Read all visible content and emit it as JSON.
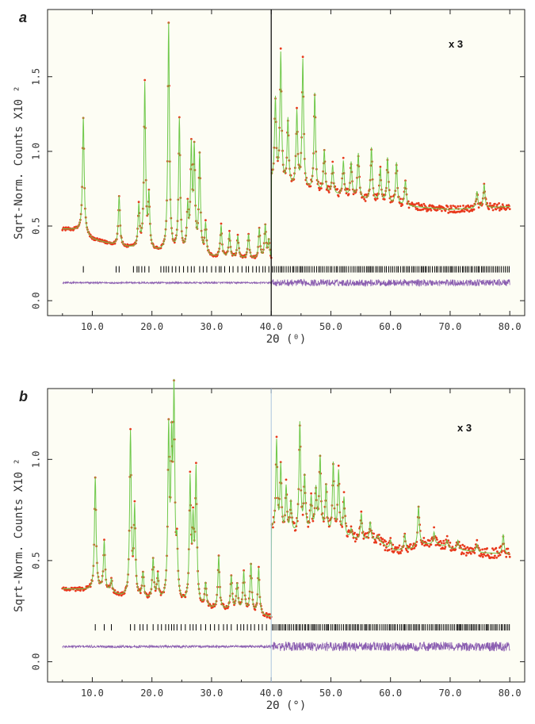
{
  "colors": {
    "observed": "#e8391c",
    "calculated": "#6fc84a",
    "difference": "#8a5db0",
    "reflection_ticks": "#000000",
    "divider_a": "#000000",
    "divider_b": "#a9c4de",
    "panel_bg": "#fdfdf4"
  },
  "chart_data": [
    {
      "panel": "a",
      "type": "line",
      "scale_note": "x 3",
      "scale_break_x": 40.0,
      "xlabel": "2Θ (⁰)",
      "ylabel": "Sqrt-Norm. Counts X10 ²",
      "xlim": [
        2.5,
        82.5
      ],
      "ylim": [
        -0.1,
        1.95
      ],
      "x_ticks": [
        10.0,
        20.0,
        30.0,
        40.0,
        50.0,
        60.0,
        70.0,
        80.0
      ],
      "x_tick_labels": [
        "10.0",
        "20.0",
        "30.0",
        "40.0",
        "50.0",
        "60.0",
        "70.0",
        "80.0"
      ],
      "y_ticks": [
        0.0,
        0.5,
        1.0,
        1.5
      ],
      "y_tick_labels": [
        "0.0",
        "0.5",
        "1.0",
        "1.5"
      ],
      "reflection_tick_y": 0.21,
      "difference_baseline": 0.12,
      "x_range": [
        5.0,
        80.0
      ],
      "background": [
        [
          5,
          0.48
        ],
        [
          8,
          0.47
        ],
        [
          10,
          0.41
        ],
        [
          15,
          0.36
        ],
        [
          20,
          0.33
        ],
        [
          25,
          0.31
        ],
        [
          30,
          0.29
        ],
        [
          35,
          0.28
        ],
        [
          40,
          0.27
        ],
        [
          40.01,
          0.8
        ],
        [
          42,
          0.76
        ],
        [
          45,
          0.74
        ],
        [
          50,
          0.71
        ],
        [
          55,
          0.68
        ],
        [
          60,
          0.64
        ],
        [
          70,
          0.61
        ],
        [
          75,
          0.62
        ],
        [
          80,
          0.63
        ]
      ],
      "peaks": [
        [
          8.5,
          1.23
        ],
        [
          14.5,
          0.7
        ],
        [
          17.8,
          0.62
        ],
        [
          18.8,
          1.44
        ],
        [
          19.5,
          0.68
        ],
        [
          22.8,
          1.85
        ],
        [
          24.6,
          1.2
        ],
        [
          26.6,
          0.98
        ],
        [
          27.1,
          0.97
        ],
        [
          28.0,
          0.96
        ],
        [
          26.0,
          0.6
        ],
        [
          29.0,
          0.5
        ],
        [
          31.6,
          0.5
        ],
        [
          33.0,
          0.45
        ],
        [
          34.4,
          0.43
        ],
        [
          36.2,
          0.44
        ],
        [
          38.0,
          0.48
        ],
        [
          39.0,
          0.5
        ],
        [
          39.6,
          0.4
        ],
        [
          40.7,
          1.34
        ],
        [
          41.6,
          1.64
        ],
        [
          42.8,
          1.2
        ],
        [
          44.3,
          1.25
        ],
        [
          45.3,
          1.6
        ],
        [
          47.3,
          1.38
        ],
        [
          48.9,
          1.0
        ],
        [
          50.3,
          0.9
        ],
        [
          52.1,
          0.93
        ],
        [
          53.4,
          0.92
        ],
        [
          54.6,
          0.98
        ],
        [
          56.8,
          1.02
        ],
        [
          58.3,
          0.88
        ],
        [
          59.5,
          0.95
        ],
        [
          61.0,
          0.92
        ],
        [
          62.5,
          0.8
        ],
        [
          74.5,
          0.73
        ],
        [
          75.7,
          0.78
        ]
      ],
      "reflection_positions": [
        8.5,
        14.0,
        14.5,
        16.9,
        17.5,
        17.8,
        18.3,
        18.8,
        19.5,
        21.5,
        22.0,
        22.4,
        22.8,
        23.4,
        24.0,
        24.6,
        25.3,
        26.0,
        26.6,
        27.1,
        28.0,
        28.6,
        29.2,
        30.0,
        30.7,
        31.3,
        31.6,
        32.2,
        33.0,
        33.6,
        34.4,
        35.1,
        35.8,
        36.2,
        36.9,
        37.5,
        38.0,
        38.6,
        39.0,
        39.6
      ]
    },
    {
      "panel": "b",
      "type": "line",
      "scale_note": "x 3",
      "scale_break_x": 40.0,
      "xlabel": "2Θ (°)",
      "ylabel": "Sqrt-Norm. Counts X10 ²",
      "xlim": [
        2.5,
        82.5
      ],
      "ylim": [
        -0.1,
        1.35
      ],
      "x_ticks": [
        10.0,
        20.0,
        30.0,
        40.0,
        50.0,
        60.0,
        70.0,
        80.0
      ],
      "x_tick_labels": [
        "10.0",
        "20.0",
        "30.0",
        "40.0",
        "50.0",
        "60.0",
        "70.0",
        "80.0"
      ],
      "y_ticks": [
        0.0,
        0.5,
        1.0
      ],
      "y_tick_labels": [
        "0.0",
        "0.5",
        "1.0"
      ],
      "reflection_tick_y": 0.17,
      "difference_baseline": 0.075,
      "x_range": [
        5.0,
        80.0
      ],
      "background": [
        [
          5,
          0.36
        ],
        [
          9,
          0.355
        ],
        [
          12,
          0.35
        ],
        [
          15,
          0.32
        ],
        [
          20,
          0.3
        ],
        [
          25,
          0.28
        ],
        [
          30,
          0.26
        ],
        [
          35,
          0.25
        ],
        [
          40,
          0.22
        ],
        [
          40.01,
          0.66
        ],
        [
          41,
          0.6
        ],
        [
          43,
          0.62
        ],
        [
          45,
          0.63
        ],
        [
          48,
          0.64
        ],
        [
          50,
          0.62
        ],
        [
          55,
          0.6
        ],
        [
          58,
          0.6
        ],
        [
          60,
          0.55
        ],
        [
          63,
          0.55
        ],
        [
          65,
          0.58
        ],
        [
          68,
          0.58
        ],
        [
          70,
          0.56
        ],
        [
          75,
          0.54
        ],
        [
          80,
          0.53
        ]
      ],
      "peaks": [
        [
          10.5,
          0.91
        ],
        [
          12.0,
          0.59
        ],
        [
          13.2,
          0.4
        ],
        [
          16.4,
          1.12
        ],
        [
          17.1,
          0.74
        ],
        [
          18.5,
          0.43
        ],
        [
          20.2,
          0.5
        ],
        [
          21.0,
          0.42
        ],
        [
          22.8,
          1.1
        ],
        [
          23.3,
          0.97
        ],
        [
          23.7,
          1.25
        ],
        [
          24.2,
          0.52
        ],
        [
          26.4,
          0.87
        ],
        [
          26.9,
          0.63
        ],
        [
          27.4,
          0.92
        ],
        [
          29.0,
          0.38
        ],
        [
          31.2,
          0.52
        ],
        [
          33.3,
          0.42
        ],
        [
          34.3,
          0.38
        ],
        [
          35.4,
          0.44
        ],
        [
          36.6,
          0.48
        ],
        [
          37.9,
          0.46
        ],
        [
          40.9,
          1.08
        ],
        [
          41.6,
          0.95
        ],
        [
          42.5,
          0.85
        ],
        [
          43.3,
          0.78
        ],
        [
          44.8,
          1.17
        ],
        [
          45.6,
          0.9
        ],
        [
          46.7,
          0.8
        ],
        [
          47.5,
          0.84
        ],
        [
          48.2,
          1.0
        ],
        [
          49.2,
          0.86
        ],
        [
          50.4,
          0.97
        ],
        [
          51.3,
          0.93
        ],
        [
          52.2,
          0.8
        ],
        [
          53.4,
          0.65
        ],
        [
          55.1,
          0.73
        ],
        [
          56.6,
          0.69
        ],
        [
          57.9,
          0.62
        ],
        [
          60.0,
          0.6
        ],
        [
          62.4,
          0.63
        ],
        [
          64.7,
          0.77
        ],
        [
          67.3,
          0.64
        ],
        [
          69.5,
          0.6
        ],
        [
          71.3,
          0.6
        ],
        [
          74.5,
          0.58
        ],
        [
          78.9,
          0.63
        ]
      ],
      "reflection_positions": [
        10.5,
        12.0,
        13.2,
        16.4,
        17.1,
        18.0,
        18.5,
        19.2,
        20.2,
        21.0,
        21.6,
        22.3,
        22.8,
        23.3,
        23.7,
        24.2,
        24.9,
        25.6,
        26.4,
        26.9,
        27.4,
        28.2,
        29.0,
        29.8,
        30.5,
        31.2,
        32.0,
        32.6,
        33.3,
        34.3,
        34.9,
        35.4,
        36.0,
        36.6,
        37.2,
        37.9,
        38.5,
        39.2
      ]
    }
  ]
}
